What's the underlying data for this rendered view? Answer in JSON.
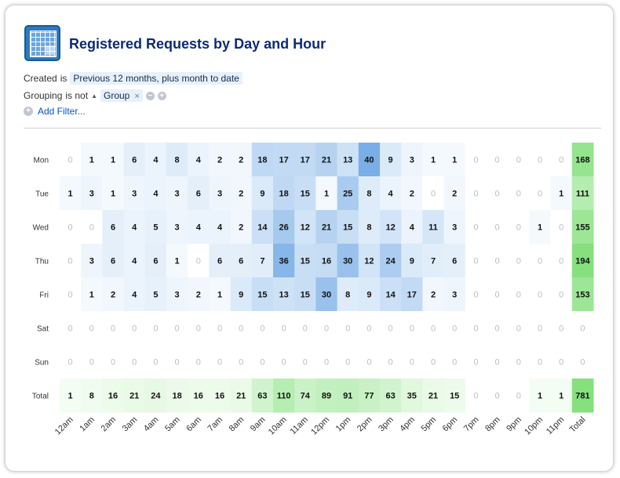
{
  "header": {
    "title": "Registered Requests by Day and Hour",
    "logo_icon": "heatmap-grid-icon"
  },
  "filters": {
    "created": {
      "field": "Created",
      "op": "is",
      "value": "Previous 12 months, plus month to date"
    },
    "grouping": {
      "field": "Grouping",
      "op": "is not",
      "value": "Group",
      "remove_symbol": "×",
      "minus_symbol": "−",
      "plus_symbol": "+"
    },
    "add_filter": {
      "label": "Add Filter...",
      "icon": "plus-circle-icon",
      "icon_symbol": "+"
    }
  },
  "colors": {
    "blue_max": "#7aaee6",
    "green_max": "#86e07e",
    "zero_text": "#b8bec8"
  },
  "chart_data": {
    "type": "heatmap",
    "title": "Registered Requests by Day and Hour",
    "rows": [
      "Mon",
      "Tue",
      "Wed",
      "Thu",
      "Fri",
      "Sat",
      "Sun",
      "Total"
    ],
    "columns": [
      "12am",
      "1am",
      "2am",
      "3am",
      "4am",
      "5am",
      "6am",
      "7am",
      "8am",
      "9am",
      "10am",
      "11am",
      "12pm",
      "1pm",
      "2pm",
      "3pm",
      "4pm",
      "5pm",
      "6pm",
      "7pm",
      "8pm",
      "9pm",
      "10pm",
      "11pm",
      "Total"
    ],
    "values": [
      [
        0,
        1,
        1,
        6,
        4,
        8,
        4,
        2,
        2,
        18,
        17,
        17,
        21,
        13,
        40,
        9,
        3,
        1,
        1,
        0,
        0,
        0,
        0,
        0,
        168
      ],
      [
        1,
        3,
        1,
        3,
        4,
        3,
        6,
        3,
        2,
        9,
        18,
        15,
        1,
        25,
        8,
        4,
        2,
        0,
        2,
        0,
        0,
        0,
        0,
        1,
        111
      ],
      [
        0,
        0,
        6,
        4,
        5,
        3,
        4,
        4,
        2,
        14,
        26,
        12,
        21,
        15,
        8,
        12,
        4,
        11,
        3,
        0,
        0,
        0,
        1,
        0,
        155
      ],
      [
        0,
        3,
        6,
        4,
        6,
        1,
        0,
        6,
        6,
        7,
        36,
        15,
        16,
        30,
        12,
        24,
        9,
        7,
        6,
        0,
        0,
        0,
        0,
        0,
        194
      ],
      [
        0,
        1,
        2,
        4,
        5,
        3,
        2,
        1,
        9,
        15,
        13,
        15,
        30,
        8,
        9,
        14,
        17,
        2,
        3,
        0,
        0,
        0,
        0,
        0,
        153
      ],
      [
        0,
        0,
        0,
        0,
        0,
        0,
        0,
        0,
        0,
        0,
        0,
        0,
        0,
        0,
        0,
        0,
        0,
        0,
        0,
        0,
        0,
        0,
        0,
        0,
        0
      ],
      [
        0,
        0,
        0,
        0,
        0,
        0,
        0,
        0,
        0,
        0,
        0,
        0,
        0,
        0,
        0,
        0,
        0,
        0,
        0,
        0,
        0,
        0,
        0,
        0,
        0
      ],
      [
        1,
        8,
        16,
        21,
        24,
        18,
        16,
        16,
        21,
        63,
        110,
        74,
        89,
        91,
        77,
        63,
        35,
        21,
        15,
        0,
        0,
        0,
        1,
        1,
        781
      ]
    ]
  }
}
